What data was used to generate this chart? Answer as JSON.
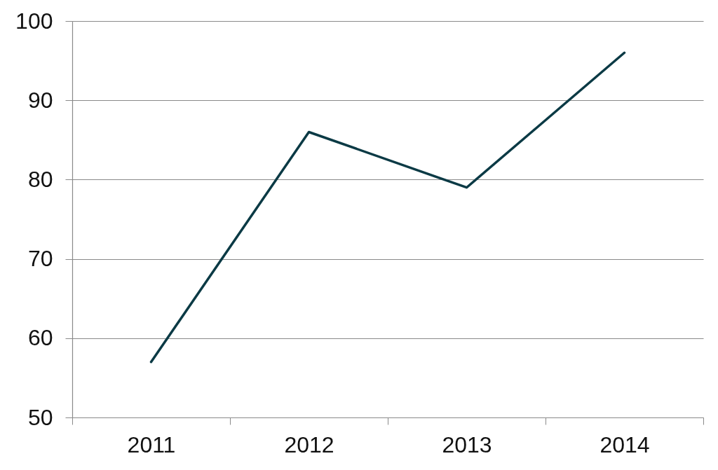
{
  "chart_data": {
    "type": "line",
    "categories": [
      "2011",
      "2012",
      "2013",
      "2014"
    ],
    "series": [
      {
        "color": "#0b3a45",
        "values": [
          57,
          86,
          79,
          96
        ]
      }
    ],
    "ylim": [
      50,
      100
    ],
    "yticks": [
      50,
      60,
      70,
      80,
      90,
      100
    ],
    "grid": "y",
    "line_style": "solid"
  }
}
